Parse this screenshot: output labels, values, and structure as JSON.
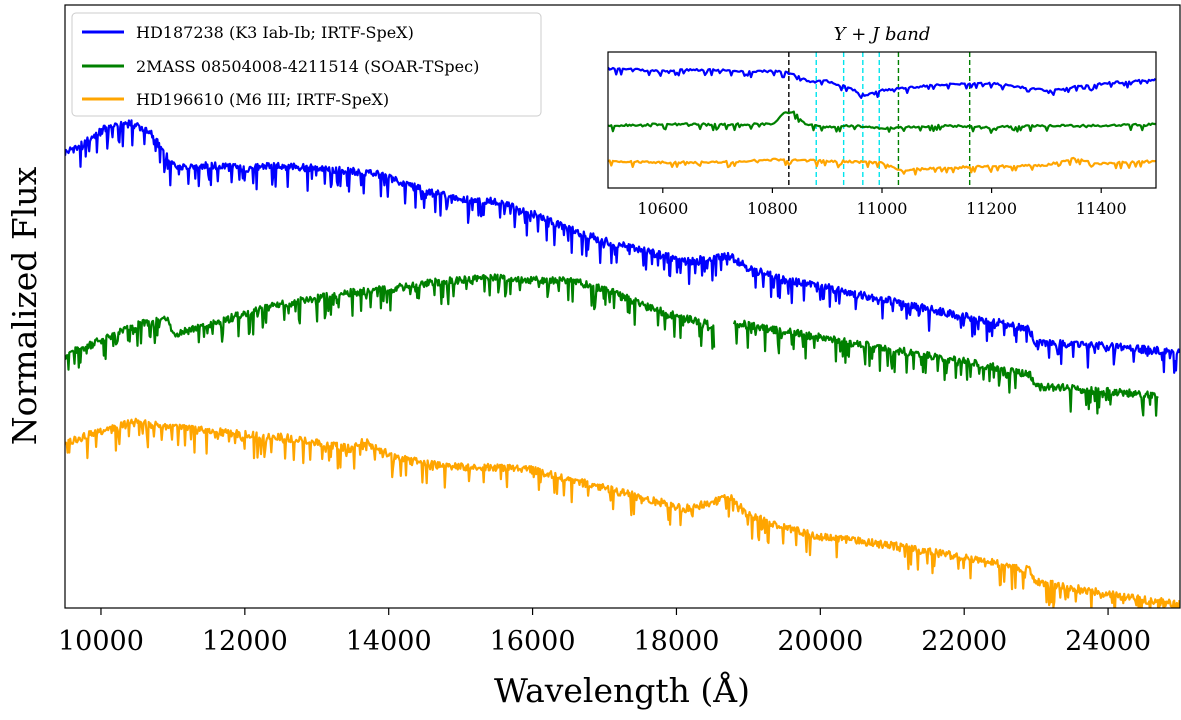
{
  "chart_data": [
    {
      "type": "line",
      "xlabel": "Wavelength (Å)",
      "ylabel": "Normalized Flux",
      "xlim": [
        9500,
        25000
      ],
      "ylim": [
        0,
        1
      ],
      "xticks": [
        10000,
        12000,
        14000,
        16000,
        18000,
        20000,
        22000,
        24000
      ],
      "yticks_shown": false,
      "legend_position": "top-left",
      "series": [
        {
          "name": "HD187238 (K3 Iab-Ib; IRTF-SpeX)",
          "color": "#0000ff",
          "x": [
            9500,
            9800,
            10100,
            10400,
            10700,
            10850,
            11000,
            11500,
            12000,
            12500,
            13000,
            13500,
            13900,
            14200,
            14600,
            15000,
            15500,
            16000,
            16500,
            17000,
            17500,
            18000,
            18100,
            18750,
            19000,
            19500,
            20000,
            21000,
            22000,
            22900,
            23000,
            23500,
            24000,
            24500,
            25000
          ],
          "y": [
            0.755,
            0.775,
            0.8,
            0.805,
            0.79,
            0.76,
            0.735,
            0.735,
            0.73,
            0.735,
            0.73,
            0.725,
            0.72,
            0.705,
            0.69,
            0.68,
            0.675,
            0.655,
            0.63,
            0.61,
            0.595,
            0.58,
            0.575,
            0.585,
            0.565,
            0.545,
            0.535,
            0.51,
            0.485,
            0.465,
            0.44,
            0.44,
            0.435,
            0.43,
            0.425
          ]
        },
        {
          "name": "2MASS 08504008-4211514 (SOAR-TSpec)",
          "color": "#008000",
          "x": [
            9500,
            10000,
            10500,
            10900,
            11000,
            11500,
            12000,
            12500,
            13000,
            13500,
            14000,
            14500,
            15000,
            15500,
            16000,
            16500,
            17000,
            17500,
            18000,
            18500,
            18800,
            19000,
            19500,
            20000,
            21000,
            22000,
            22900,
            23000,
            23500,
            24000,
            24700
          ],
          "y": [
            0.42,
            0.445,
            0.47,
            0.485,
            0.455,
            0.47,
            0.49,
            0.505,
            0.515,
            0.525,
            0.53,
            0.54,
            0.545,
            0.55,
            0.545,
            0.545,
            0.53,
            0.505,
            0.485,
            0.47,
            0.475,
            0.47,
            0.46,
            0.45,
            0.43,
            0.41,
            0.39,
            0.37,
            0.365,
            0.36,
            0.355
          ]
        },
        {
          "name": "HD196610 (M6 III; IRTF-SpeX)",
          "color": "#ffa500",
          "x": [
            9500,
            10000,
            10500,
            11000,
            11500,
            12000,
            12500,
            13000,
            13500,
            13650,
            13800,
            14000,
            14500,
            15000,
            15500,
            16000,
            16500,
            17000,
            17500,
            18000,
            18100,
            18750,
            19000,
            19500,
            20000,
            21000,
            22000,
            22900,
            23000,
            23500,
            24000,
            24500,
            25000
          ],
          "y": [
            0.275,
            0.295,
            0.31,
            0.3,
            0.295,
            0.29,
            0.285,
            0.275,
            0.265,
            0.28,
            0.27,
            0.255,
            0.24,
            0.235,
            0.235,
            0.23,
            0.215,
            0.2,
            0.185,
            0.17,
            0.165,
            0.185,
            0.155,
            0.135,
            0.12,
            0.105,
            0.085,
            0.065,
            0.045,
            0.035,
            0.025,
            0.015,
            0.008
          ]
        }
      ]
    },
    {
      "type": "line",
      "title": "Y + J band",
      "xlim": [
        10500,
        11500
      ],
      "xticks": [
        10600,
        10800,
        11000,
        11200,
        11400
      ],
      "yticks_shown": false,
      "vlines": [
        {
          "x": 10830,
          "color": "#000000"
        },
        {
          "x": 10880,
          "color": "#00e5ee"
        },
        {
          "x": 10930,
          "color": "#00e5ee"
        },
        {
          "x": 10965,
          "color": "#00e5ee"
        },
        {
          "x": 10995,
          "color": "#00e5ee"
        },
        {
          "x": 11030,
          "color": "#008000"
        },
        {
          "x": 11160,
          "color": "#008000"
        }
      ],
      "series": [
        {
          "name": "HD187238",
          "color": "#0000ff",
          "x": [
            10500,
            10560,
            10600,
            10650,
            10700,
            10750,
            10800,
            10830,
            10870,
            10900,
            10950,
            10970,
            11000,
            11050,
            11100,
            11200,
            11300,
            11400,
            11500
          ],
          "y": [
            0.88,
            0.87,
            0.86,
            0.87,
            0.87,
            0.86,
            0.86,
            0.85,
            0.78,
            0.79,
            0.72,
            0.68,
            0.72,
            0.74,
            0.76,
            0.77,
            0.72,
            0.77,
            0.8
          ]
        },
        {
          "name": "2MASS 08504008-4211514",
          "color": "#008000",
          "x": [
            10500,
            10600,
            10700,
            10800,
            10820,
            10840,
            10860,
            10900,
            10950,
            11000,
            11100,
            11200,
            11300,
            11400,
            11500
          ],
          "y": [
            0.46,
            0.47,
            0.47,
            0.47,
            0.55,
            0.56,
            0.47,
            0.45,
            0.46,
            0.44,
            0.46,
            0.45,
            0.46,
            0.46,
            0.47
          ]
        },
        {
          "name": "HD196610",
          "color": "#ffa500",
          "x": [
            10500,
            10600,
            10700,
            10800,
            10900,
            11000,
            11030,
            11100,
            11200,
            11300,
            11350,
            11400,
            11500
          ],
          "y": [
            0.2,
            0.19,
            0.19,
            0.21,
            0.2,
            0.19,
            0.13,
            0.15,
            0.16,
            0.17,
            0.22,
            0.18,
            0.2
          ]
        }
      ]
    }
  ]
}
